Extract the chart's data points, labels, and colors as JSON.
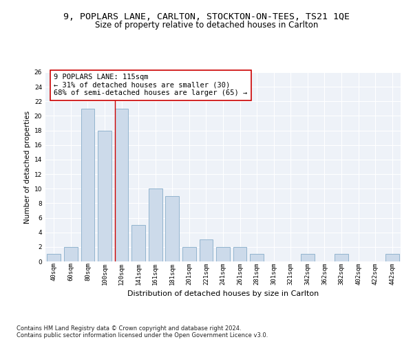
{
  "title1": "9, POPLARS LANE, CARLTON, STOCKTON-ON-TEES, TS21 1QE",
  "title2": "Size of property relative to detached houses in Carlton",
  "xlabel": "Distribution of detached houses by size in Carlton",
  "ylabel": "Number of detached properties",
  "categories": [
    "40sqm",
    "60sqm",
    "80sqm",
    "100sqm",
    "120sqm",
    "141sqm",
    "161sqm",
    "181sqm",
    "201sqm",
    "221sqm",
    "241sqm",
    "261sqm",
    "281sqm",
    "301sqm",
    "321sqm",
    "342sqm",
    "362sqm",
    "382sqm",
    "402sqm",
    "422sqm",
    "442sqm"
  ],
  "values": [
    1,
    2,
    21,
    18,
    21,
    5,
    10,
    9,
    2,
    3,
    2,
    2,
    1,
    0,
    0,
    1,
    0,
    1,
    0,
    0,
    1
  ],
  "bar_color": "#ccdaea",
  "bar_edge_color": "#92b4ce",
  "vline_color": "#cc0000",
  "vline_index": 4,
  "annotation_text": "9 POPLARS LANE: 115sqm\n← 31% of detached houses are smaller (30)\n68% of semi-detached houses are larger (65) →",
  "annotation_box_color": "#ffffff",
  "annotation_box_edge": "#cc0000",
  "ylim": [
    0,
    26
  ],
  "yticks": [
    0,
    2,
    4,
    6,
    8,
    10,
    12,
    14,
    16,
    18,
    20,
    22,
    24,
    26
  ],
  "bg_color": "#eef2f8",
  "grid_color": "#ffffff",
  "footer": "Contains HM Land Registry data © Crown copyright and database right 2024.\nContains public sector information licensed under the Open Government Licence v3.0.",
  "title1_fontsize": 9.5,
  "title2_fontsize": 8.5,
  "xlabel_fontsize": 8,
  "ylabel_fontsize": 7.5,
  "tick_fontsize": 6.5,
  "annot_fontsize": 7.5,
  "footer_fontsize": 6
}
